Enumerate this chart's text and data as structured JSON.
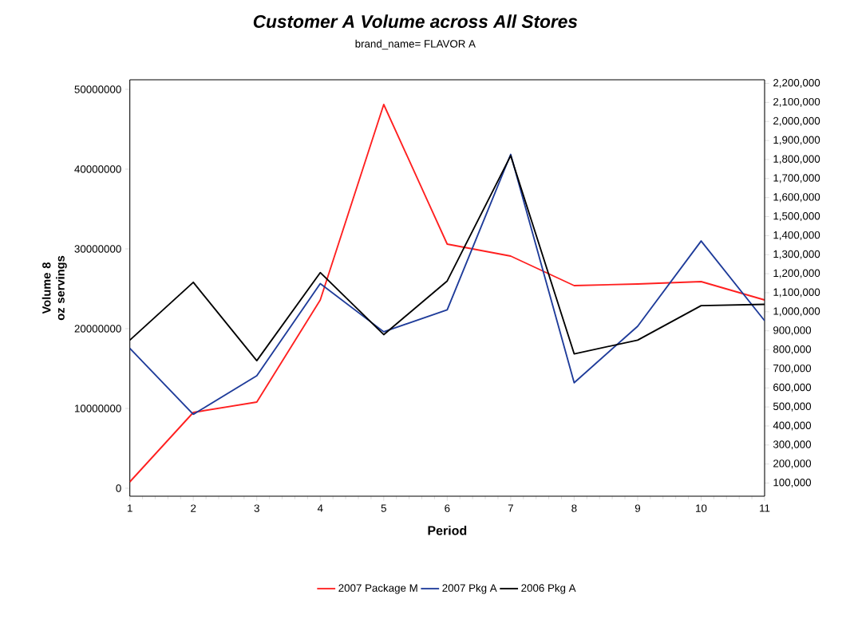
{
  "chart_data": {
    "type": "line",
    "title": "Customer A  Volume across All Stores",
    "subtitle": "brand_name=   FLAVOR A",
    "xlabel": "Period",
    "ylabel": "Volume 8 oz servings",
    "x": [
      1,
      2,
      3,
      4,
      5,
      6,
      7,
      8,
      9,
      10,
      11
    ],
    "xlim": [
      1,
      11
    ],
    "xticks": [
      1,
      2,
      3,
      4,
      5,
      6,
      7,
      8,
      9,
      10,
      11
    ],
    "ylim": [
      -1000000,
      51200000
    ],
    "yticks": [
      0,
      10000000,
      20000000,
      30000000,
      40000000,
      50000000
    ],
    "y2lim": [
      31000,
      2219000
    ],
    "y2ticks": [
      {
        "value": 100000,
        "label": "100,000"
      },
      {
        "value": 200000,
        "label": "200,000"
      },
      {
        "value": 300000,
        "label": "300,000"
      },
      {
        "value": 400000,
        "label": "400,000"
      },
      {
        "value": 500000,
        "label": "500,000"
      },
      {
        "value": 600000,
        "label": "600,000"
      },
      {
        "value": 700000,
        "label": "700,000"
      },
      {
        "value": 800000,
        "label": "800,000"
      },
      {
        "value": 900000,
        "label": "900,000"
      },
      {
        "value": 1000000,
        "label": "1,000,000"
      },
      {
        "value": 1100000,
        "label": "1,100,000"
      },
      {
        "value": 1200000,
        "label": "1,200,000"
      },
      {
        "value": 1300000,
        "label": "1,300,000"
      },
      {
        "value": 1400000,
        "label": "1,400,000"
      },
      {
        "value": 1500000,
        "label": "1,500,000"
      },
      {
        "value": 1600000,
        "label": "1,600,000"
      },
      {
        "value": 1700000,
        "label": "1,700,000"
      },
      {
        "value": 1800000,
        "label": "1,800,000"
      },
      {
        "value": 1900000,
        "label": "1,900,000"
      },
      {
        "value": 2000000,
        "label": "2,000,000"
      },
      {
        "value": 2100000,
        "label": "2,100,000"
      },
      {
        "value": 2200000,
        "label": "2,200,000"
      }
    ],
    "series": [
      {
        "name": "2007   Package M",
        "color": "#ff2020",
        "values": [
          800000,
          9500000,
          10800000,
          23600000,
          48100000,
          30600000,
          29100000,
          25400000,
          25600000,
          25900000,
          23600000
        ]
      },
      {
        "name": "2007   Pkg A",
        "color": "#1f3c9a",
        "axis": "y2",
        "values": [
          808000,
          461000,
          664000,
          1148000,
          895000,
          1010000,
          1827000,
          627000,
          924000,
          1372000,
          953000
        ]
      },
      {
        "name": "2006   Pkg A",
        "color": "#000000",
        "axis": "y2",
        "values": [
          851000,
          1155000,
          743000,
          1206000,
          880000,
          1162000,
          1820000,
          779000,
          851000,
          1032000,
          1039000
        ]
      }
    ],
    "grid": false,
    "legend": "bottom",
    "marker": "none",
    "line_style": "solid"
  }
}
